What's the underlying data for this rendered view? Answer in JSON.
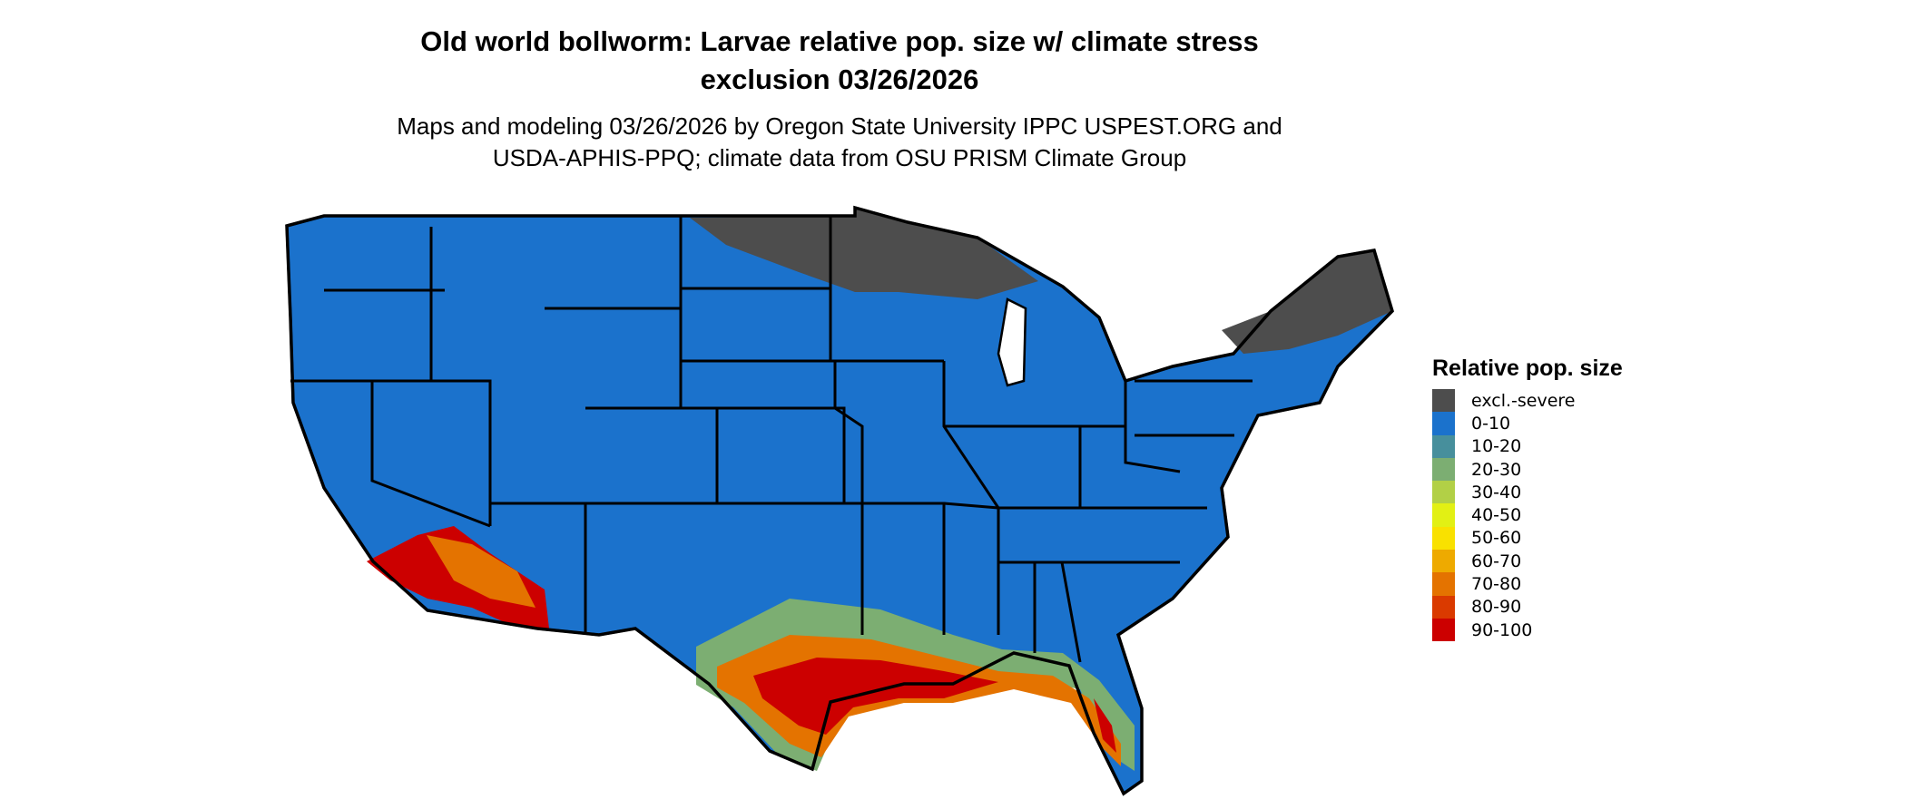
{
  "header": {
    "title_line1": "Old world bollworm: Larvae relative pop. size w/ climate stress",
    "title_line2": "exclusion 03/26/2026",
    "subtitle_line1": "Maps and modeling 03/26/2026 by Oregon State University IPPC USPEST.ORG and",
    "subtitle_line2": "USDA-APHIS-PPQ; climate data from OSU PRISM Climate Group"
  },
  "legend": {
    "title": "Relative pop. size",
    "items": [
      {
        "label": "excl.-severe",
        "color": "#4d4d4d"
      },
      {
        "label": "0-10",
        "color": "#1b72cc"
      },
      {
        "label": "10-20",
        "color": "#478f9c"
      },
      {
        "label": "20-30",
        "color": "#7cae72"
      },
      {
        "label": "30-40",
        "color": "#b2d046"
      },
      {
        "label": "40-50",
        "color": "#e2f014"
      },
      {
        "label": "50-60",
        "color": "#f9e100"
      },
      {
        "label": "60-70",
        "color": "#eeaa00"
      },
      {
        "label": "70-80",
        "color": "#e47300"
      },
      {
        "label": "80-90",
        "color": "#da3a00"
      },
      {
        "label": "90-100",
        "color": "#cc0000"
      }
    ]
  },
  "map": {
    "region": "Contiguous United States",
    "base_color": "#1b72cc",
    "excluded_color": "#4d4d4d",
    "border_color": "#000000"
  }
}
